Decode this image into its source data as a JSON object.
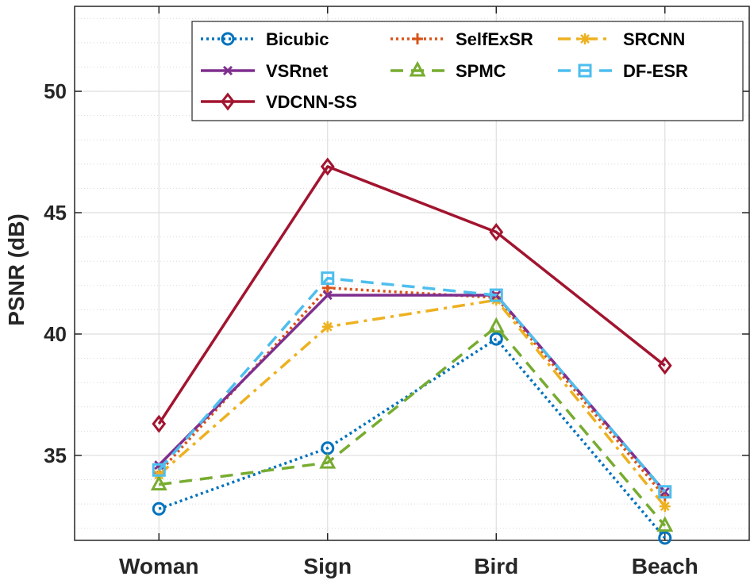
{
  "chart_data": {
    "type": "line",
    "title": "",
    "xlabel": "",
    "ylabel": "PSNR (dB)",
    "categories": [
      "Woman",
      "Sign",
      "Bird",
      "Beach"
    ],
    "ylim": [
      31.5,
      53.5
    ],
    "yticks": [
      35,
      40,
      45,
      50
    ],
    "grid": true,
    "minor_grid": true,
    "legend_position": "top-right",
    "series": [
      {
        "name": "Bicubic",
        "values": [
          32.8,
          35.3,
          39.8,
          31.6
        ],
        "color": "#0072bd",
        "dash": "dotted",
        "marker": "circle"
      },
      {
        "name": "SelfExSR",
        "values": [
          34.3,
          41.9,
          41.5,
          33.3
        ],
        "color": "#d95319",
        "dash": "dotted",
        "marker": "plus"
      },
      {
        "name": "SRCNN",
        "values": [
          34.2,
          40.3,
          41.4,
          32.9
        ],
        "color": "#edb120",
        "dash": "dashdot",
        "marker": "asterisk"
      },
      {
        "name": "VSRnet",
        "values": [
          34.6,
          41.6,
          41.6,
          33.5
        ],
        "color": "#7e2f8e",
        "dash": "solid",
        "marker": "x"
      },
      {
        "name": "SPMC",
        "values": [
          33.8,
          34.7,
          40.3,
          32.1
        ],
        "color": "#77ac30",
        "dash": "dashed",
        "marker": "triangle"
      },
      {
        "name": "DF-ESR",
        "values": [
          34.4,
          42.3,
          41.6,
          33.5
        ],
        "color": "#4dbeee",
        "dash": "dashed",
        "marker": "square"
      },
      {
        "name": "VDCNN-SS",
        "values": [
          36.3,
          46.9,
          44.2,
          38.7
        ],
        "color": "#a2142f",
        "dash": "solid",
        "marker": "diamond"
      }
    ]
  }
}
